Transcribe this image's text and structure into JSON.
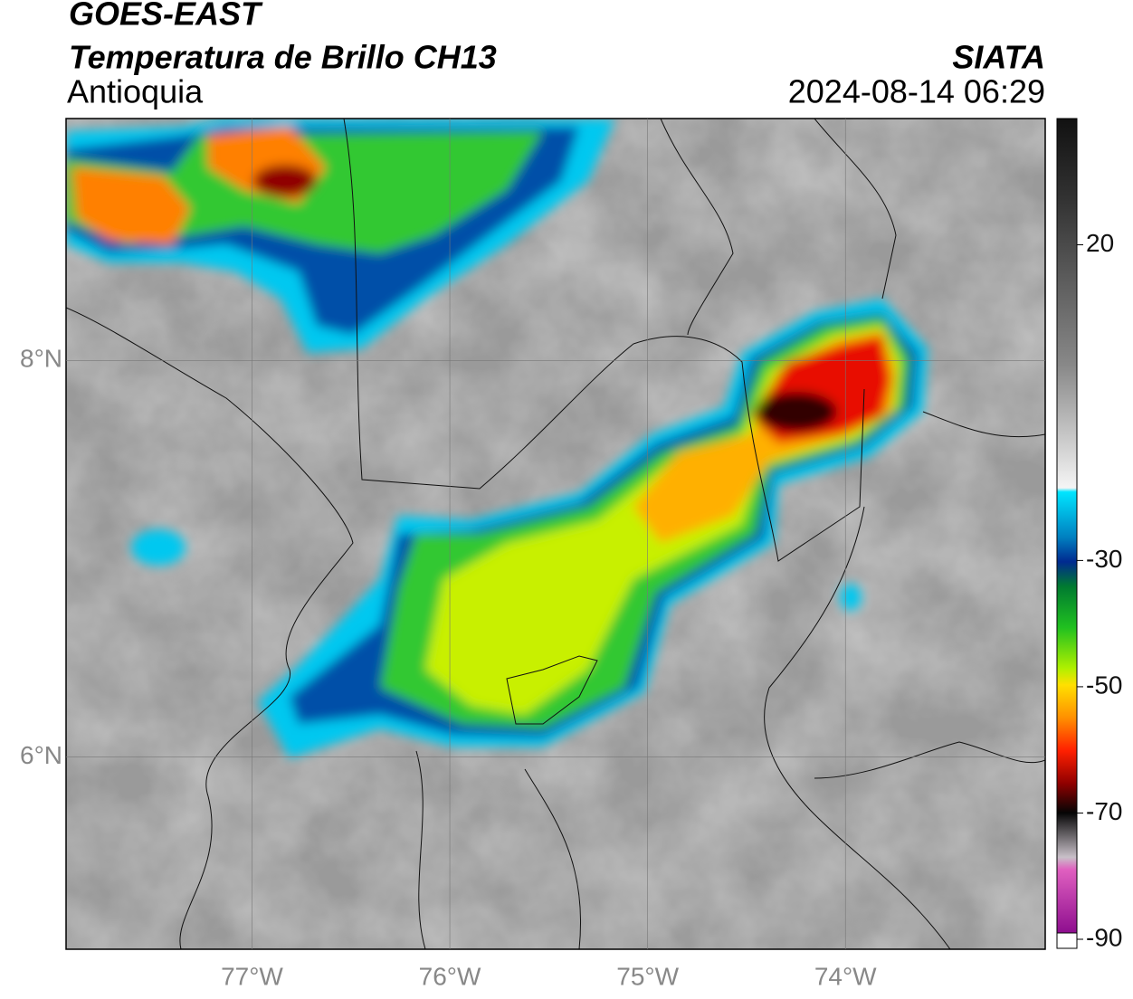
{
  "header": {
    "title": "GOES-EAST",
    "subtitle": "Temperatura de Brillo CH13",
    "region": "Antioquia",
    "source": "SIATA",
    "timestamp": "2024-08-14 06:29"
  },
  "map": {
    "xlim": [
      -77.94,
      -72.99
    ],
    "ylim": [
      5.03,
      9.22
    ],
    "xticks": [
      {
        "value": -77,
        "label": "77°W"
      },
      {
        "value": -76,
        "label": "76°W"
      },
      {
        "value": -75,
        "label": "75°W"
      },
      {
        "value": -74,
        "label": "74°W"
      }
    ],
    "yticks": [
      {
        "value": 6,
        "label": "6°N"
      },
      {
        "value": 8,
        "label": "8°N"
      }
    ],
    "grid": true
  },
  "colorbar": {
    "lim": [
      -90,
      40
    ],
    "ticks": [
      20,
      -30,
      -50,
      -70,
      -90
    ]
  }
}
